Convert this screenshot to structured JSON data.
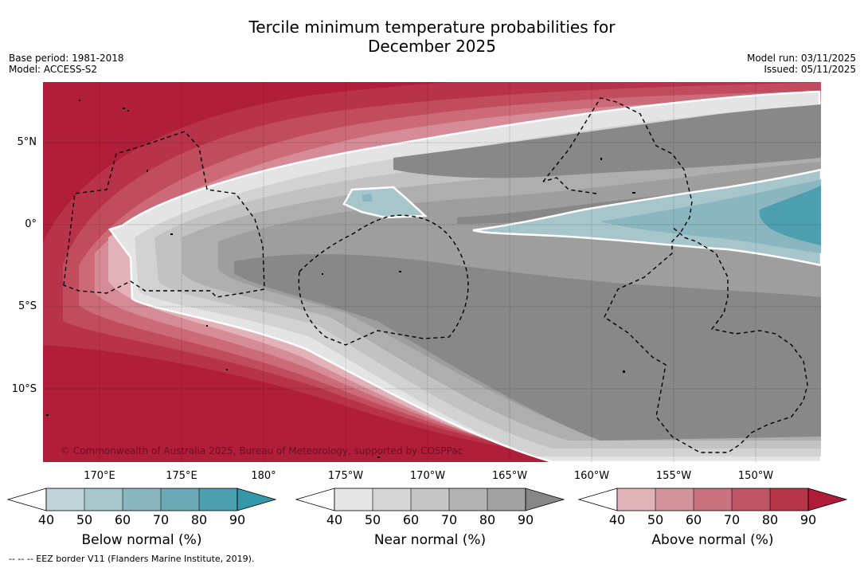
{
  "title_line1": "Tercile minimum temperature probabilities for",
  "title_line2": "December 2025",
  "base_period": "Base period: 1981-2018",
  "model": "Model: ACCESS-S2",
  "model_run": "Model run: 03/11/2025",
  "issued": "Issued: 05/11/2025",
  "lat_labels": [
    "5°N",
    "0°",
    "5°S",
    "10°S"
  ],
  "lon_labels": [
    "170°E",
    "175°E",
    "180°",
    "175°W",
    "170°W",
    "165°W",
    "160°W",
    "155°W",
    "150°W"
  ],
  "copyright": "© Commonwealth of Australia 2025, Bureau of Meteorology, supported by COSPPac",
  "colorbars": {
    "below": {
      "title": "Below normal (%)",
      "ticks": [
        "40",
        "50",
        "60",
        "70",
        "80",
        "90"
      ],
      "colors": [
        "#bfd3d9",
        "#a7c7cd",
        "#8ab6c0",
        "#6aa9b5",
        "#4b9fae",
        "#3598a8"
      ]
    },
    "near": {
      "title": "Near normal (%)",
      "ticks": [
        "40",
        "50",
        "60",
        "70",
        "80",
        "90"
      ],
      "colors": [
        "#e6e6e6",
        "#d6d6d6",
        "#c6c6c6",
        "#b3b3b3",
        "#a2a2a2",
        "#878787"
      ]
    },
    "above": {
      "title": "Above normal (%)",
      "ticks": [
        "40",
        "50",
        "60",
        "70",
        "80",
        "90"
      ],
      "colors": [
        "#e1b4ba",
        "#d5949c",
        "#ca737f",
        "#bf5565",
        "#b63549",
        "#ae1c37"
      ]
    }
  },
  "footnote": "--  --  -- EEZ border V11 (Flanders Marine Institute, 2019)."
}
